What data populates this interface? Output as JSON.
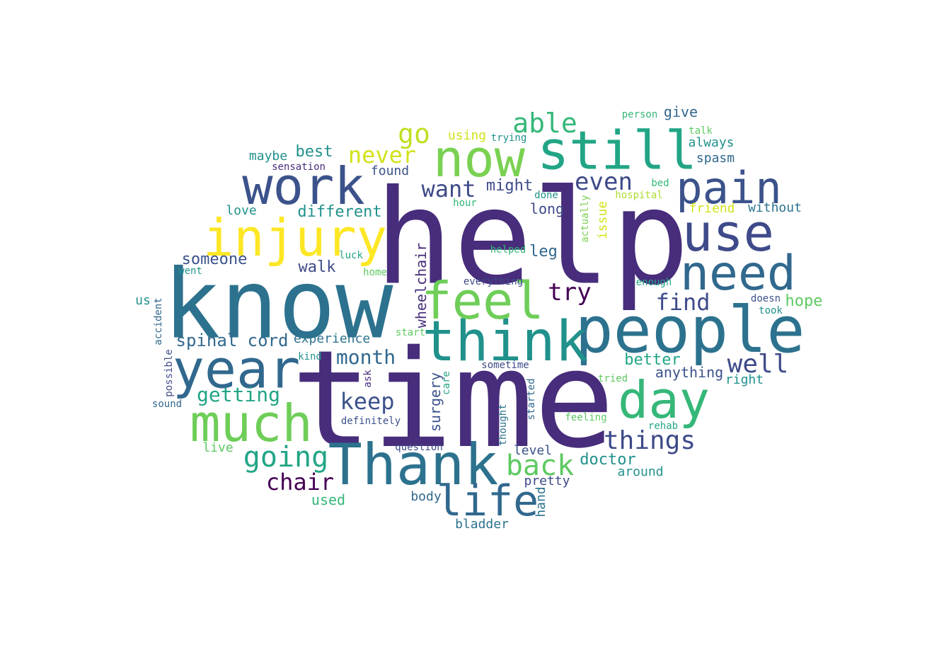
{
  "palette": {
    "dark_purple": "#472d7b",
    "indigo": "#3b528b",
    "blue": "#2c728e",
    "teal": "#21918c",
    "green": "#28ae80",
    "light_green": "#5ec962",
    "lime": "#addc30",
    "yellow": "#e8e419",
    "deep_purple": "#440154"
  },
  "words": [
    {
      "text": "help",
      "color": "#472d7b"
    },
    {
      "text": "time",
      "color": "#472d7b"
    },
    {
      "text": "know",
      "color": "#2c728e"
    },
    {
      "text": "people",
      "color": "#2c728e"
    },
    {
      "text": "Thank",
      "color": "#2c728e"
    },
    {
      "text": "think",
      "color": "#21918c"
    },
    {
      "text": "now",
      "color": "#7ad151"
    },
    {
      "text": "still",
      "color": "#21a585"
    },
    {
      "text": "injury",
      "color": "#fde725"
    },
    {
      "text": "work",
      "color": "#3b528b"
    },
    {
      "text": "year",
      "color": "#31688e"
    },
    {
      "text": "feel",
      "color": "#6ece58"
    },
    {
      "text": "use",
      "color": "#3e4a89"
    },
    {
      "text": "need",
      "color": "#31688e"
    },
    {
      "text": "pain",
      "color": "#3b528b"
    },
    {
      "text": "much",
      "color": "#6ece58"
    },
    {
      "text": "day",
      "color": "#35b779"
    },
    {
      "text": "life",
      "color": "#31688e"
    },
    {
      "text": "go",
      "color": "#c2df23"
    },
    {
      "text": "able",
      "color": "#35b779"
    },
    {
      "text": "even",
      "color": "#3e4a89"
    },
    {
      "text": "want",
      "color": "#3e4a89"
    },
    {
      "text": "never",
      "color": "#d2e21b"
    },
    {
      "text": "try",
      "color": "#440154"
    },
    {
      "text": "find",
      "color": "#3e4a89"
    },
    {
      "text": "things",
      "color": "#3e4a89"
    },
    {
      "text": "going",
      "color": "#21a585"
    },
    {
      "text": "back",
      "color": "#5ec962"
    },
    {
      "text": "well",
      "color": "#3e4a89"
    },
    {
      "text": "keep",
      "color": "#3b528b"
    },
    {
      "text": "month",
      "color": "#31688e"
    },
    {
      "text": "chair",
      "color": "#440154"
    },
    {
      "text": "getting",
      "color": "#21a585"
    },
    {
      "text": "wheelchair",
      "color": "#472d7b"
    },
    {
      "text": "surgery",
      "color": "#3b528b"
    },
    {
      "text": "spinal cord",
      "color": "#31688e"
    },
    {
      "text": "someone",
      "color": "#3b528b"
    },
    {
      "text": "walk",
      "color": "#3e4a89"
    },
    {
      "text": "different",
      "color": "#21918c"
    },
    {
      "text": "best",
      "color": "#21918c"
    },
    {
      "text": "maybe",
      "color": "#21918c"
    },
    {
      "text": "love",
      "color": "#21918c"
    },
    {
      "text": "might",
      "color": "#3e4a89"
    },
    {
      "text": "long",
      "color": "#3e4a89"
    },
    {
      "text": "leg",
      "color": "#31688e"
    },
    {
      "text": "doctor",
      "color": "#21918c"
    },
    {
      "text": "better",
      "color": "#21a585"
    },
    {
      "text": "anything",
      "color": "#3b528b"
    },
    {
      "text": "hope",
      "color": "#5ec962"
    },
    {
      "text": "give",
      "color": "#31688e"
    },
    {
      "text": "always",
      "color": "#21918c"
    },
    {
      "text": "spasm",
      "color": "#31688e"
    },
    {
      "text": "without",
      "color": "#2c728e"
    },
    {
      "text": "friend",
      "color": "#d2e21b"
    },
    {
      "text": "issue",
      "color": "#d2e21b"
    },
    {
      "text": "experience",
      "color": "#2c728e"
    },
    {
      "text": "found",
      "color": "#3b528b"
    },
    {
      "text": "using",
      "color": "#d2e21b"
    },
    {
      "text": "trying",
      "color": "#21918c"
    },
    {
      "text": "used",
      "color": "#35b779"
    },
    {
      "text": "around",
      "color": "#21918c"
    },
    {
      "text": "pretty",
      "color": "#3e4a89"
    },
    {
      "text": "level",
      "color": "#3b528b"
    },
    {
      "text": "body",
      "color": "#31688e"
    },
    {
      "text": "bladder",
      "color": "#2c728e"
    },
    {
      "text": "right",
      "color": "#21918c"
    },
    {
      "text": "live",
      "color": "#5ec962"
    },
    {
      "text": "us",
      "color": "#21918c"
    },
    {
      "text": "person",
      "color": "#35b779"
    },
    {
      "text": "talk",
      "color": "#5ec962"
    },
    {
      "text": "sensation",
      "color": "#472d7b"
    },
    {
      "text": "hospital",
      "color": "#addc30"
    },
    {
      "text": "done",
      "color": "#21918c"
    },
    {
      "text": "bed",
      "color": "#35b779"
    },
    {
      "text": "hour",
      "color": "#35b779"
    },
    {
      "text": "actually",
      "color": "#7ad151"
    },
    {
      "text": "helped",
      "color": "#35b779"
    },
    {
      "text": "luck",
      "color": "#21a585"
    },
    {
      "text": "home",
      "color": "#5ec962"
    },
    {
      "text": "went",
      "color": "#21918c"
    },
    {
      "text": "everything",
      "color": "#3e4a89"
    },
    {
      "text": "enough",
      "color": "#21a585"
    },
    {
      "text": "doesn",
      "color": "#3b528b"
    },
    {
      "text": "took",
      "color": "#21918c"
    },
    {
      "text": "accident",
      "color": "#31688e"
    },
    {
      "text": "start",
      "color": "#5ec962"
    },
    {
      "text": "kind",
      "color": "#21918c"
    },
    {
      "text": "possible",
      "color": "#3e4a89"
    },
    {
      "text": "sometime",
      "color": "#3e4a89"
    },
    {
      "text": "tried",
      "color": "#5ec962"
    },
    {
      "text": "ask",
      "color": "#472d7b"
    },
    {
      "text": "care",
      "color": "#21a585"
    },
    {
      "text": "started",
      "color": "#31688e"
    },
    {
      "text": "sound",
      "color": "#31688e"
    },
    {
      "text": "definitely",
      "color": "#3b528b"
    },
    {
      "text": "thought",
      "color": "#2c728e"
    },
    {
      "text": "feeling",
      "color": "#5ec962"
    },
    {
      "text": "rehab",
      "color": "#21a585"
    },
    {
      "text": "question",
      "color": "#3e4a89"
    },
    {
      "text": "hand",
      "color": "#2c728e"
    }
  ]
}
